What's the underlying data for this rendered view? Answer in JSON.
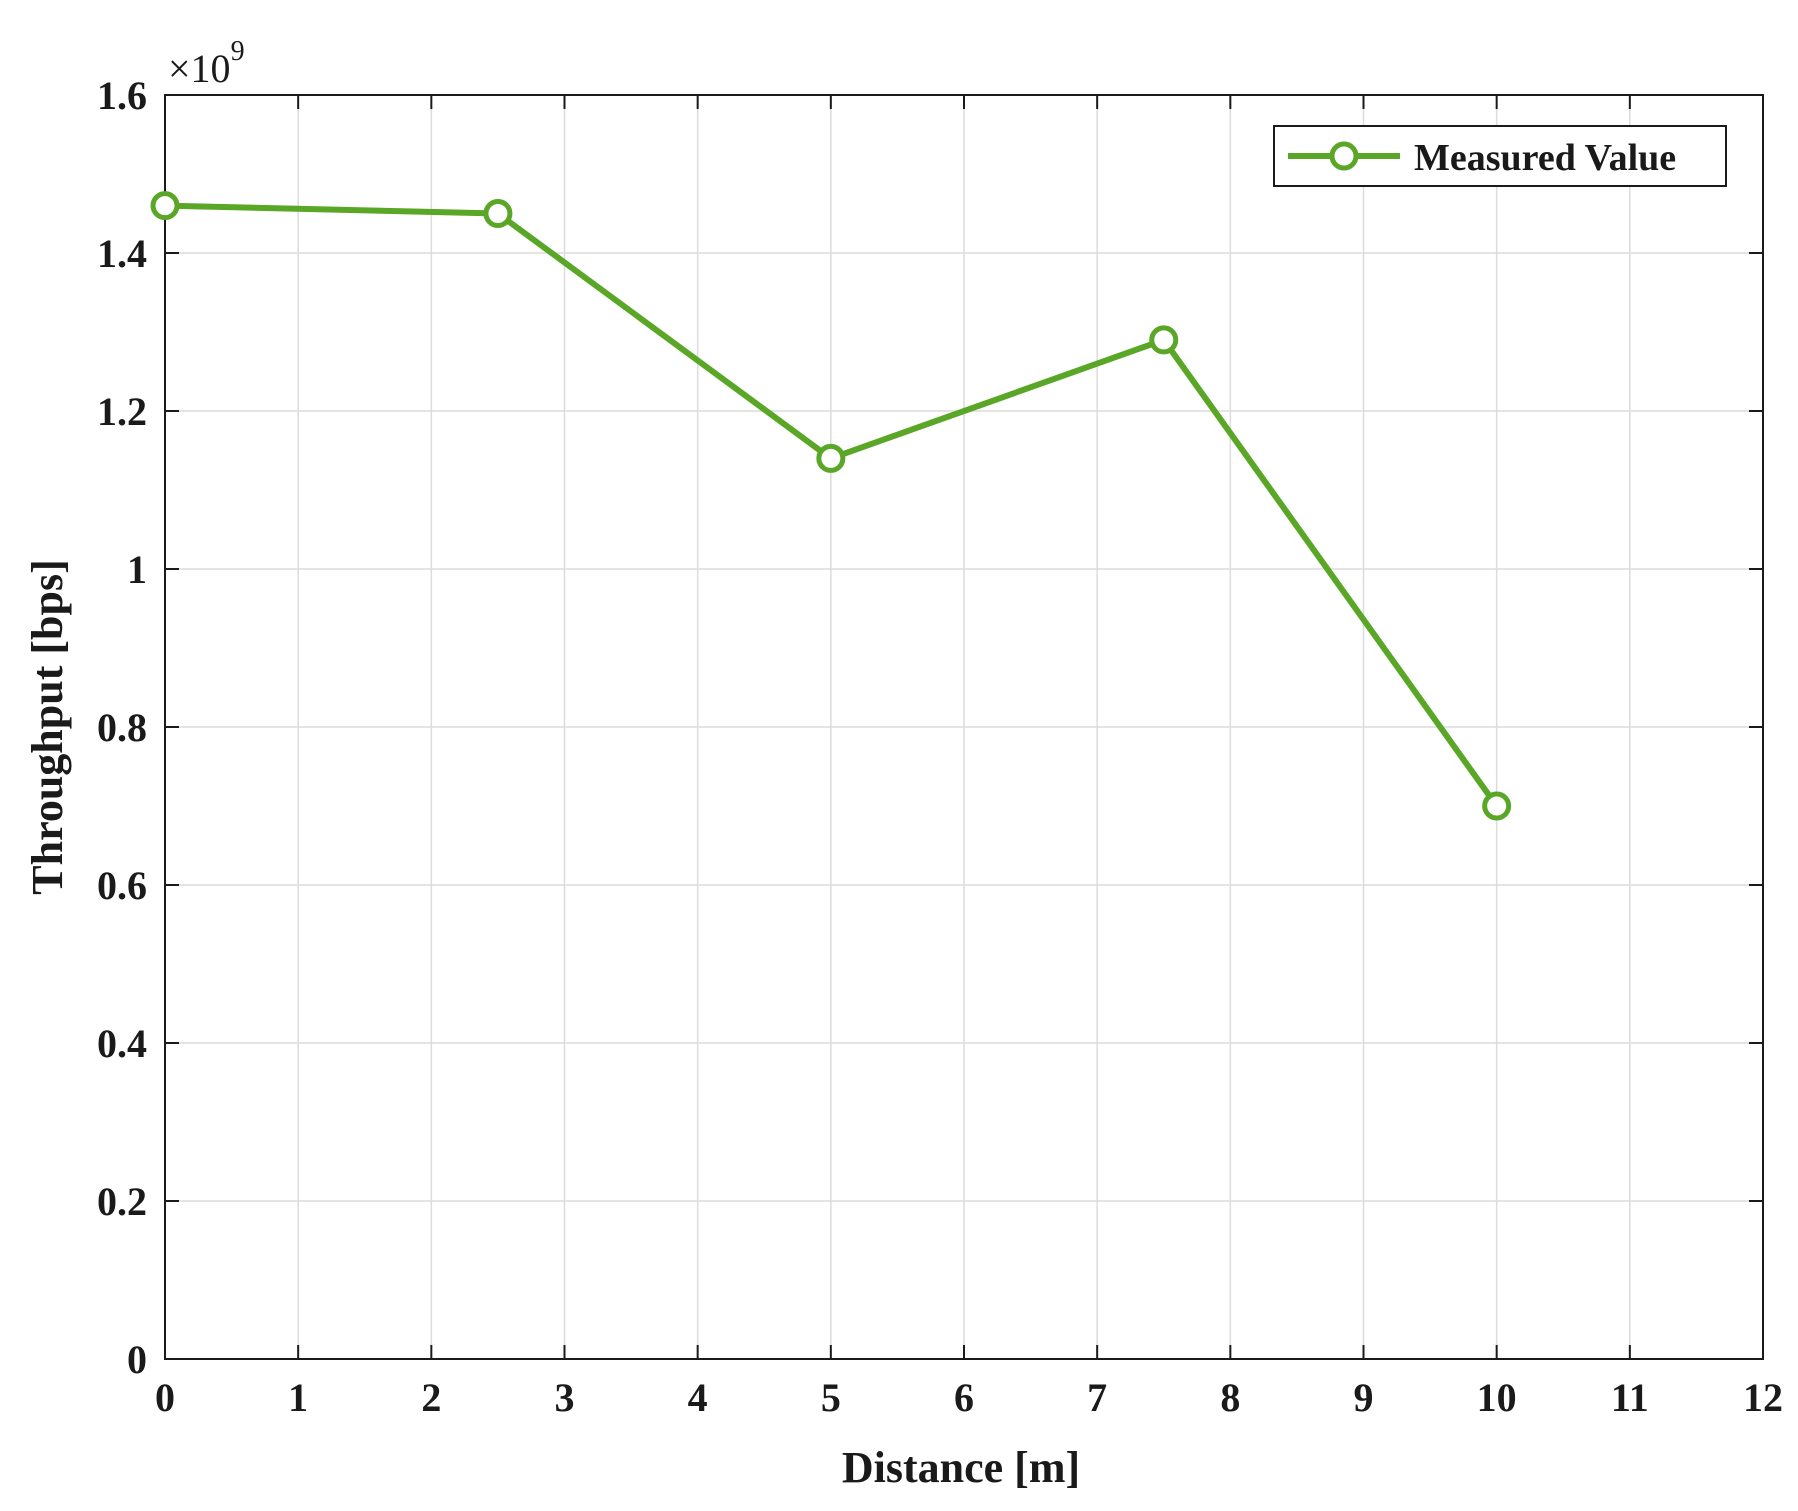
{
  "chart_data": {
    "type": "line",
    "title": "",
    "xlabel": "Distance [m]",
    "ylabel": "Throughput [bps]",
    "xlim": [
      0,
      12
    ],
    "ylim": [
      0,
      1.6
    ],
    "y_multiplier_label": "×10",
    "y_multiplier_exponent": "9",
    "xticks": [
      "0",
      "1",
      "2",
      "3",
      "4",
      "5",
      "6",
      "7",
      "8",
      "9",
      "10",
      "11",
      "12"
    ],
    "yticks": [
      "0",
      "0.2",
      "0.4",
      "0.6",
      "0.8",
      "1",
      "1.2",
      "1.4",
      "1.6"
    ],
    "grid": true,
    "legend_position": "top-right",
    "series": [
      {
        "name": "Measured Value",
        "color": "#5aa626",
        "marker": "circle",
        "x": [
          0,
          2.5,
          5,
          7.5,
          10
        ],
        "y": [
          1.46,
          1.45,
          1.14,
          1.29,
          0.7
        ]
      }
    ]
  }
}
